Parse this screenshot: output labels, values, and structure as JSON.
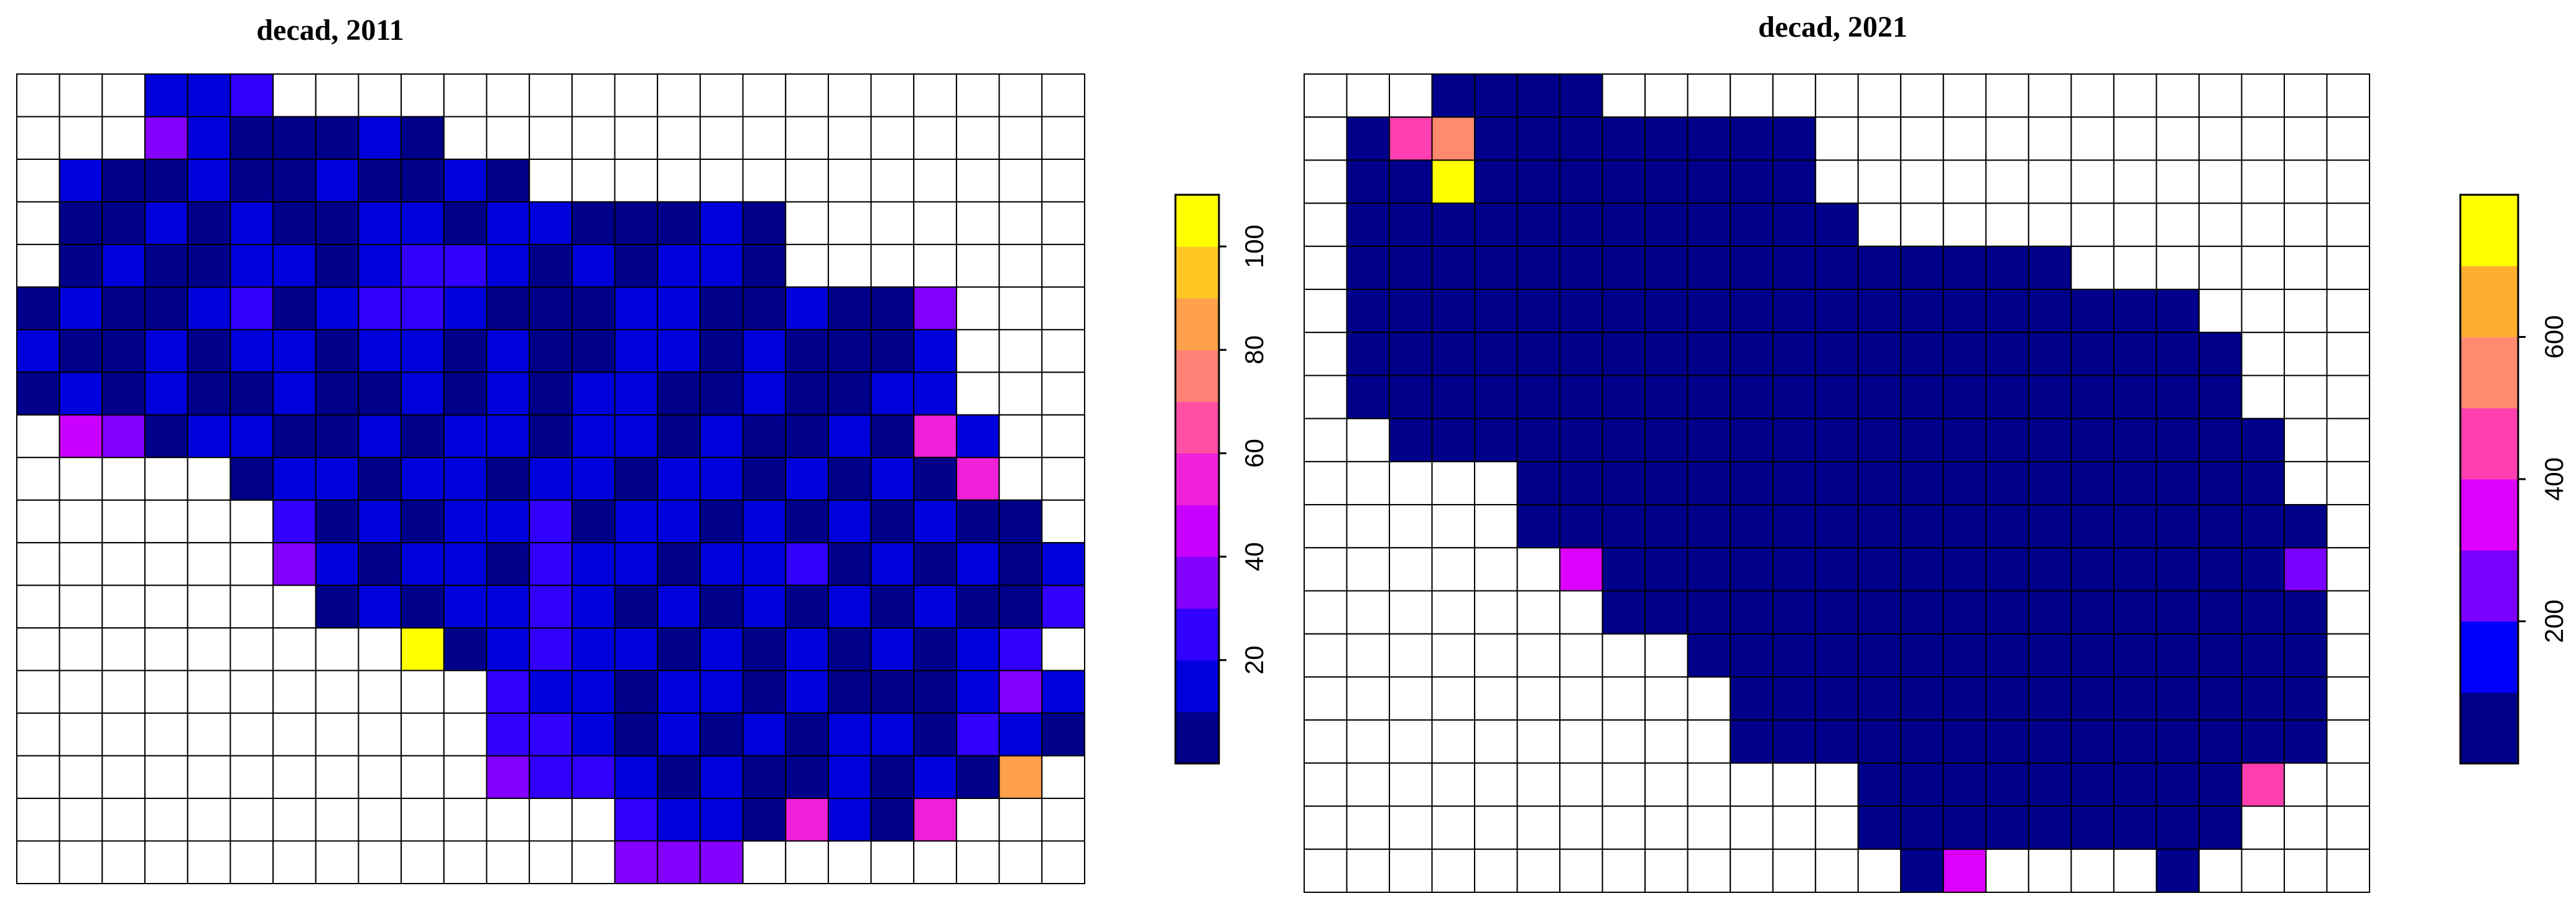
{
  "chart_data": [
    {
      "type": "heatmap",
      "title": "decad, 2011",
      "zlim": [
        0,
        110
      ],
      "ticks": [
        20,
        40,
        60,
        80,
        100
      ],
      "bands": 11,
      "palette": [
        "#00008b",
        "#0000ff",
        "#7a00ff",
        "#dd00ff",
        "#ff3fb0",
        "#ff8a70",
        "#ffae30",
        "#ffff00"
      ],
      "values": [
        [
          null,
          null,
          null,
          12,
          14,
          20,
          null,
          null,
          null,
          null,
          null,
          null,
          null,
          null,
          null,
          null,
          null,
          null,
          null,
          null,
          null,
          null,
          null,
          null,
          null
        ],
        [
          null,
          null,
          null,
          30,
          10,
          9,
          8,
          9,
          10,
          8,
          null,
          null,
          null,
          null,
          null,
          null,
          null,
          null,
          null,
          null,
          null,
          null,
          null,
          null,
          null
        ],
        [
          null,
          10,
          8,
          9,
          11,
          9,
          8,
          10,
          9,
          8,
          12,
          9,
          null,
          null,
          null,
          null,
          null,
          null,
          null,
          null,
          null,
          null,
          null,
          null,
          null
        ],
        [
          null,
          9,
          8,
          10,
          9,
          12,
          9,
          8,
          11,
          10,
          9,
          12,
          10,
          9,
          8,
          8,
          10,
          9,
          null,
          null,
          null,
          null,
          null,
          null,
          null
        ],
        [
          null,
          8,
          10,
          9,
          8,
          14,
          10,
          9,
          18,
          22,
          20,
          11,
          9,
          10,
          9,
          11,
          10,
          8,
          null,
          null,
          null,
          null,
          null,
          null,
          null
        ],
        [
          9,
          10,
          8,
          9,
          12,
          20,
          9,
          14,
          24,
          20,
          10,
          9,
          8,
          9,
          11,
          10,
          9,
          8,
          10,
          9,
          8,
          30,
          null,
          null,
          null
        ],
        [
          10,
          9,
          8,
          11,
          9,
          18,
          10,
          9,
          12,
          11,
          9,
          10,
          9,
          8,
          10,
          11,
          9,
          10,
          9,
          8,
          9,
          10,
          null,
          null,
          null
        ],
        [
          9,
          10,
          9,
          10,
          9,
          8,
          10,
          9,
          8,
          11,
          9,
          10,
          9,
          14,
          10,
          9,
          8,
          10,
          9,
          8,
          12,
          10,
          null,
          null,
          null
        ],
        [
          null,
          40,
          30,
          9,
          10,
          11,
          9,
          8,
          10,
          9,
          12,
          10,
          9,
          16,
          11,
          9,
          10,
          9,
          8,
          10,
          9,
          55,
          10,
          null,
          null
        ],
        [
          null,
          null,
          null,
          null,
          null,
          9,
          10,
          12,
          9,
          14,
          10,
          9,
          18,
          10,
          9,
          11,
          10,
          9,
          12,
          9,
          10,
          9,
          50,
          null,
          null
        ],
        [
          null,
          null,
          null,
          null,
          null,
          null,
          25,
          9,
          10,
          9,
          10,
          12,
          20,
          9,
          10,
          16,
          9,
          10,
          9,
          11,
          9,
          10,
          9,
          8,
          null
        ],
        [
          null,
          null,
          null,
          null,
          null,
          null,
          30,
          10,
          9,
          11,
          10,
          9,
          24,
          10,
          11,
          9,
          10,
          18,
          22,
          9,
          10,
          9,
          10,
          9,
          12
        ],
        [
          null,
          null,
          null,
          null,
          null,
          null,
          null,
          9,
          10,
          9,
          10,
          11,
          20,
          10,
          9,
          10,
          9,
          10,
          9,
          10,
          9,
          10,
          9,
          9,
          20
        ],
        [
          null,
          null,
          null,
          null,
          null,
          null,
          null,
          null,
          null,
          105,
          9,
          10,
          22,
          10,
          12,
          9,
          10,
          9,
          10,
          9,
          10,
          9,
          10,
          25,
          null
        ],
        [
          null,
          null,
          null,
          null,
          null,
          null,
          null,
          null,
          null,
          null,
          null,
          20,
          18,
          10,
          9,
          10,
          14,
          9,
          10,
          9,
          8,
          9,
          10,
          30,
          10
        ],
        [
          null,
          null,
          null,
          null,
          null,
          null,
          null,
          null,
          null,
          null,
          null,
          25,
          22,
          10,
          9,
          11,
          9,
          10,
          9,
          10,
          12,
          9,
          20,
          10,
          9
        ],
        [
          null,
          null,
          null,
          null,
          null,
          null,
          null,
          null,
          null,
          null,
          null,
          30,
          28,
          25,
          10,
          9,
          10,
          9,
          8,
          10,
          9,
          10,
          9,
          85,
          null
        ],
        [
          null,
          null,
          null,
          null,
          null,
          null,
          null,
          null,
          null,
          null,
          null,
          null,
          null,
          null,
          20,
          14,
          10,
          9,
          50,
          10,
          9,
          50,
          null,
          null,
          null
        ],
        [
          null,
          null,
          null,
          null,
          null,
          null,
          null,
          null,
          null,
          null,
          null,
          null,
          null,
          null,
          30,
          38,
          35,
          null,
          null,
          null,
          null,
          null,
          null,
          null,
          null
        ]
      ]
    },
    {
      "type": "heatmap",
      "title": "decad, 2021",
      "zlim": [
        0,
        800
      ],
      "ticks": [
        200,
        400,
        600
      ],
      "bands": 8,
      "palette": [
        "#00008b",
        "#0000ff",
        "#7a00ff",
        "#dd00ff",
        "#ff3fb0",
        "#ff8a70",
        "#ffae30",
        "#ffff00"
      ],
      "values": [
        [
          null,
          null,
          null,
          30,
          30,
          30,
          30,
          null,
          null,
          null,
          null,
          null,
          null,
          null,
          null,
          null,
          null,
          null,
          null,
          null,
          null,
          null,
          null,
          null,
          null
        ],
        [
          null,
          30,
          450,
          520,
          30,
          30,
          30,
          30,
          30,
          30,
          30,
          30,
          null,
          null,
          null,
          null,
          null,
          null,
          null,
          null,
          null,
          null,
          null,
          null,
          null
        ],
        [
          null,
          30,
          30,
          780,
          30,
          30,
          30,
          30,
          30,
          30,
          30,
          30,
          null,
          null,
          null,
          null,
          null,
          null,
          null,
          null,
          null,
          null,
          null,
          null,
          null
        ],
        [
          null,
          30,
          30,
          30,
          30,
          30,
          30,
          30,
          30,
          30,
          30,
          30,
          30,
          null,
          null,
          null,
          null,
          null,
          null,
          null,
          null,
          null,
          null,
          null,
          null
        ],
        [
          null,
          30,
          30,
          30,
          30,
          30,
          30,
          30,
          30,
          30,
          30,
          30,
          30,
          30,
          30,
          30,
          30,
          30,
          null,
          null,
          null,
          null,
          null,
          null,
          null
        ],
        [
          null,
          30,
          30,
          30,
          30,
          30,
          30,
          30,
          30,
          30,
          30,
          30,
          30,
          30,
          30,
          30,
          30,
          30,
          30,
          30,
          30,
          null,
          null,
          null,
          null
        ],
        [
          null,
          30,
          30,
          30,
          30,
          30,
          80,
          30,
          30,
          30,
          30,
          30,
          30,
          30,
          30,
          30,
          30,
          30,
          30,
          30,
          30,
          30,
          null,
          null,
          null
        ],
        [
          null,
          30,
          30,
          30,
          30,
          30,
          30,
          30,
          30,
          30,
          30,
          30,
          30,
          30,
          30,
          30,
          30,
          30,
          30,
          30,
          30,
          30,
          null,
          null,
          null
        ],
        [
          null,
          null,
          30,
          30,
          30,
          30,
          30,
          30,
          30,
          30,
          30,
          30,
          30,
          30,
          30,
          30,
          30,
          30,
          30,
          30,
          30,
          30,
          30,
          null,
          null
        ],
        [
          null,
          null,
          null,
          null,
          null,
          30,
          30,
          30,
          30,
          30,
          30,
          30,
          30,
          30,
          30,
          30,
          30,
          30,
          30,
          30,
          30,
          30,
          30,
          null,
          null
        ],
        [
          null,
          null,
          null,
          null,
          null,
          30,
          30,
          30,
          30,
          30,
          30,
          30,
          30,
          30,
          30,
          30,
          30,
          30,
          30,
          30,
          30,
          30,
          30,
          30,
          null
        ],
        [
          null,
          null,
          null,
          null,
          null,
          null,
          350,
          30,
          30,
          30,
          30,
          30,
          30,
          30,
          30,
          30,
          30,
          30,
          30,
          30,
          30,
          30,
          30,
          250,
          null
        ],
        [
          null,
          null,
          null,
          null,
          null,
          null,
          null,
          30,
          30,
          30,
          30,
          30,
          30,
          30,
          30,
          30,
          30,
          30,
          80,
          30,
          30,
          30,
          30,
          30,
          null
        ],
        [
          null,
          null,
          null,
          null,
          null,
          null,
          null,
          null,
          null,
          30,
          30,
          30,
          30,
          30,
          30,
          30,
          80,
          30,
          30,
          30,
          30,
          30,
          30,
          30,
          null
        ],
        [
          null,
          null,
          null,
          null,
          null,
          null,
          null,
          null,
          null,
          null,
          30,
          30,
          30,
          30,
          30,
          30,
          30,
          30,
          30,
          30,
          30,
          30,
          30,
          30,
          null
        ],
        [
          null,
          null,
          null,
          null,
          null,
          null,
          null,
          null,
          null,
          null,
          30,
          30,
          30,
          30,
          30,
          30,
          30,
          30,
          30,
          30,
          30,
          30,
          30,
          30,
          null
        ],
        [
          null,
          null,
          null,
          null,
          null,
          null,
          null,
          null,
          null,
          null,
          null,
          null,
          null,
          30,
          30,
          30,
          30,
          30,
          30,
          30,
          30,
          30,
          450,
          null,
          null
        ],
        [
          null,
          null,
          null,
          null,
          null,
          null,
          null,
          null,
          null,
          null,
          null,
          null,
          null,
          30,
          30,
          30,
          30,
          30,
          30,
          30,
          30,
          30,
          null,
          null,
          null
        ],
        [
          null,
          null,
          null,
          null,
          null,
          null,
          null,
          null,
          null,
          null,
          null,
          null,
          null,
          null,
          30,
          300,
          null,
          null,
          null,
          null,
          30,
          null,
          null,
          null,
          null
        ]
      ]
    }
  ]
}
